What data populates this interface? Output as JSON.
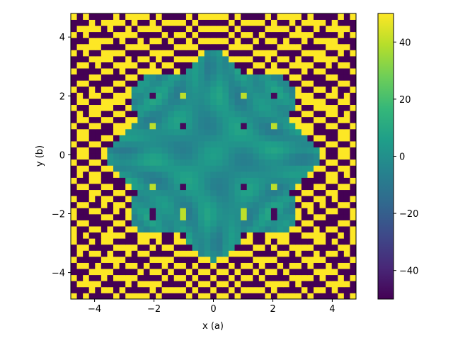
{
  "chart_data": {
    "type": "heatmap",
    "title": "",
    "xlabel": "x (a)",
    "ylabel": "y (b)",
    "xlim": [
      -4.8,
      4.8
    ],
    "ylim": [
      -4.9,
      4.8
    ],
    "x_ticks": [
      -4,
      -2,
      0,
      2,
      4
    ],
    "y_ticks": [
      -4,
      -2,
      0,
      2,
      4
    ],
    "x_tick_labels": [
      "−4",
      "−2",
      "0",
      "2",
      "4"
    ],
    "y_tick_labels": [
      "−4",
      "−2",
      "0",
      "2",
      "4"
    ],
    "colorbar": {
      "range": [
        -50,
        50
      ],
      "ticks": [
        -40,
        -20,
        0,
        20,
        40
      ],
      "tick_labels": [
        "−40",
        "−20",
        "0",
        "20",
        "40"
      ],
      "colormap": "viridis"
    },
    "grid_resolution": [
      47,
      47
    ],
    "pattern": "Central circular region (radius ≈ 3.3) of values near 0 with a lattice of extreme peaks (±50) at x,y = ±1, ±2, ±3; outside region alternates between +50 and −50 in a checkerboard / stripe pattern.",
    "colors": {
      "viridis": [
        "#440154",
        "#482878",
        "#3e4989",
        "#31688e",
        "#26828e",
        "#1f9e89",
        "#35b779",
        "#6ece58",
        "#b5de2b",
        "#fde725"
      ]
    }
  }
}
